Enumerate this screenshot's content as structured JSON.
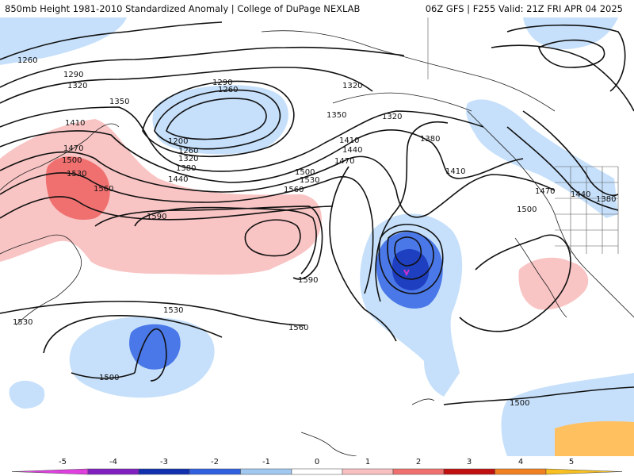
{
  "header": {
    "title_left": "850mb Height 1981-2010 Standardized Anomaly | College of DuPage NEXLAB",
    "title_right": "06Z GFS | F255 Valid: 21Z FRI APR 04 2025"
  },
  "contour_values": [
    "1200",
    "1260",
    "1260",
    "1260",
    "1290",
    "1290",
    "1320",
    "1320",
    "1320",
    "1320",
    "1350",
    "1350",
    "1380",
    "1380",
    "1380",
    "1410",
    "1410",
    "1410",
    "1440",
    "1440",
    "1440",
    "1470",
    "1470",
    "1470",
    "1500",
    "1500",
    "1500",
    "1500",
    "1500",
    "1530",
    "1530",
    "1530",
    "1530",
    "1560",
    "1560",
    "1560",
    "1590",
    "1590"
  ],
  "colorbar": {
    "ticks": [
      "-5",
      "-4",
      "-3",
      "-2",
      "-1",
      "0",
      "1",
      "2",
      "3",
      "4",
      "5"
    ],
    "colors": [
      "#e040e0",
      "#8020c0",
      "#1030b0",
      "#3060e0",
      "#a0c8f0",
      "#ffffff",
      "#f8c0c0",
      "#f07070",
      "#c01010",
      "#f08020",
      "#f8c020"
    ]
  },
  "anomaly_colors": {
    "light_blue": "#c6e0fb",
    "mid_blue": "#4a78e8",
    "dark_blue": "#1e3fc0",
    "light_red": "#f9c4c4",
    "mid_red": "#f07070",
    "min_marker": "#cc33cc"
  }
}
